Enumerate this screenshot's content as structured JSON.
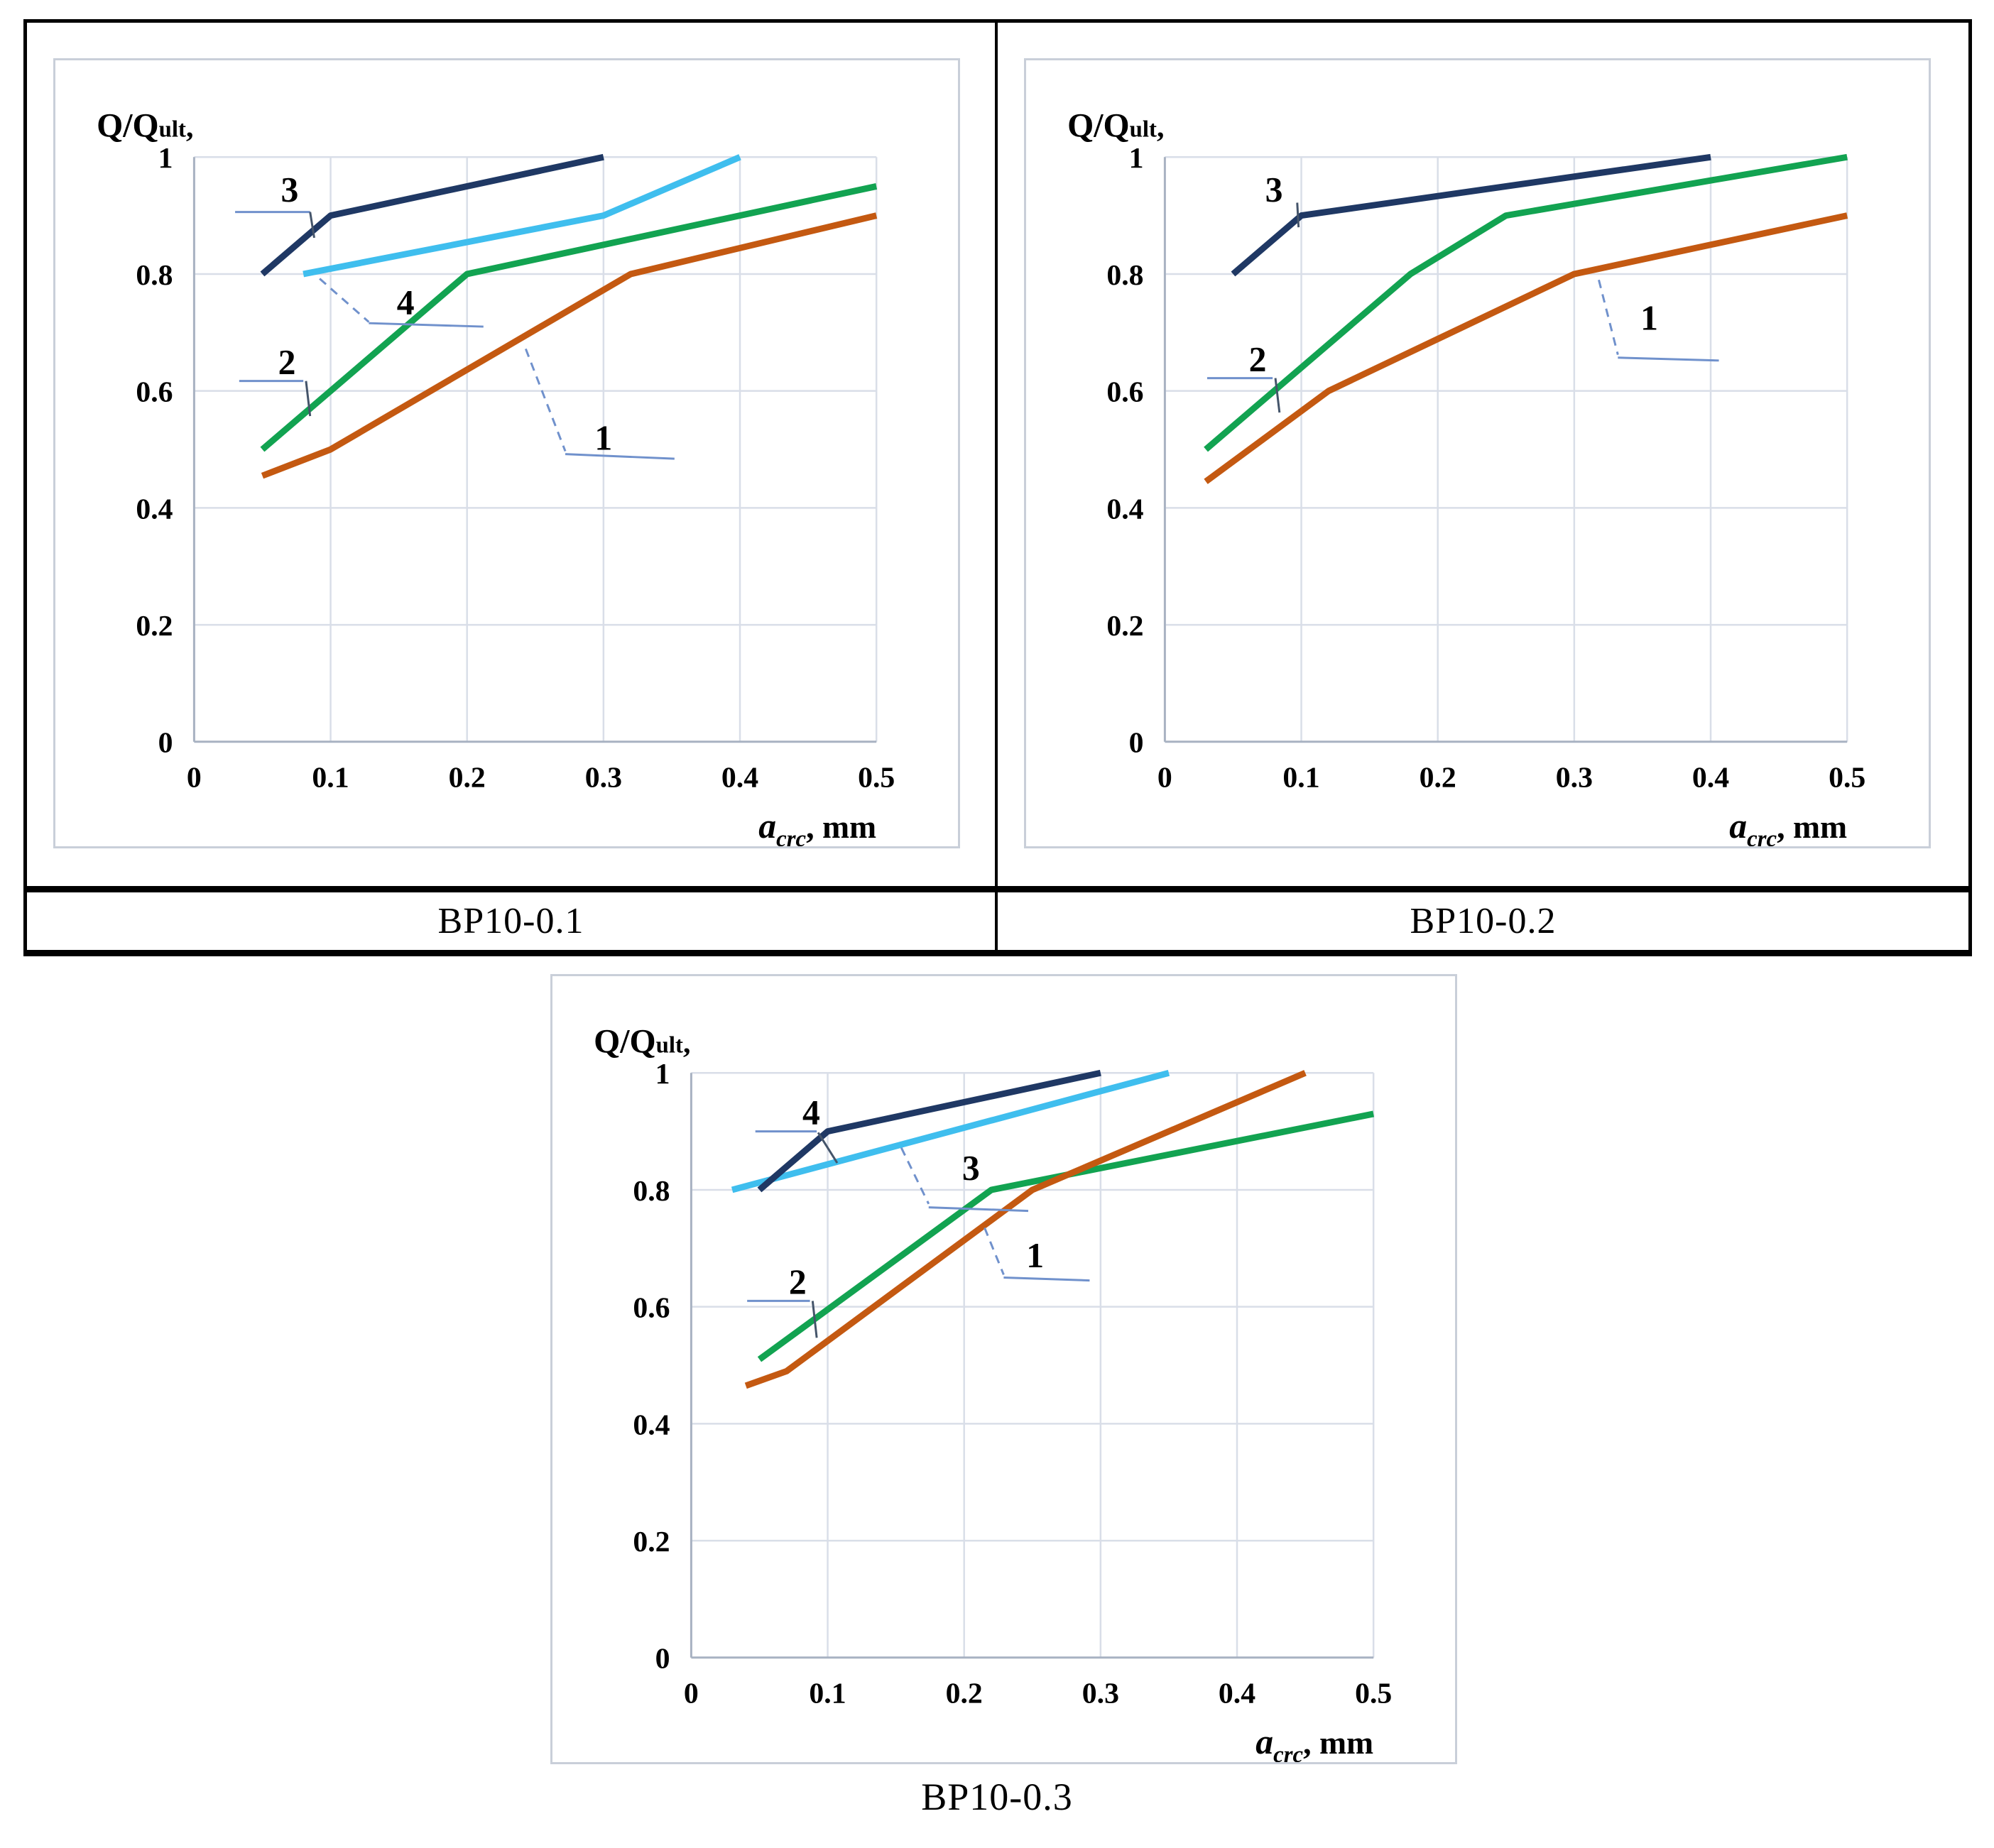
{
  "styles": {
    "navy": "#1F3864",
    "cyan": "#3FBEEE",
    "green": "#12A351",
    "orange": "#C45911",
    "grid": "#D9DEE8",
    "axis": "#A8B2C2",
    "leader_light": "#7091CC",
    "leader_dark": "#44546A",
    "frame_border": "#C9CFD9",
    "table_border": "#000000",
    "text": "#000000"
  },
  "chart_data": [
    {
      "id": "bp10-0-1",
      "title": "BP10-0.1",
      "type": "line",
      "xlabel": "a_crc, mm",
      "ylabel": "Q/Qult,",
      "xlabel_parts": [
        "a",
        "crc",
        ", mm"
      ],
      "ylabel_parts": [
        "Q/Q",
        "ult",
        ","
      ],
      "xlim": [
        0,
        0.5
      ],
      "ylim": [
        0,
        1
      ],
      "x_ticks": [
        0,
        0.1,
        0.2,
        0.3,
        0.4,
        0.5
      ],
      "y_ticks": [
        0,
        0.2,
        0.4,
        0.6,
        0.8,
        1
      ],
      "grid": true,
      "legend_position": "none",
      "series": [
        {
          "name": "2",
          "color_key": "green",
          "points": [
            [
              0.05,
              0.5
            ],
            [
              0.2,
              0.8
            ],
            [
              0.5,
              0.95
            ]
          ]
        },
        {
          "name": "1",
          "color_key": "orange",
          "points": [
            [
              0.05,
              0.455
            ],
            [
              0.1,
              0.5
            ],
            [
              0.32,
              0.8
            ],
            [
              0.5,
              0.9
            ]
          ]
        },
        {
          "name": "4",
          "color_key": "cyan",
          "points": [
            [
              0.08,
              0.8
            ],
            [
              0.3,
              0.9
            ],
            [
              0.4,
              1.0
            ]
          ]
        },
        {
          "name": "3",
          "color_key": "navy",
          "points": [
            [
              0.05,
              0.8
            ],
            [
              0.1,
              0.9
            ],
            [
              0.3,
              1.0
            ]
          ]
        }
      ],
      "annotations": [
        {
          "text": "3",
          "x": 0.07,
          "y": 0.945,
          "leaders": [
            {
              "points": [
                [
                  0.03,
                  0.906
                ],
                [
                  0.085,
                  0.906
                ]
              ],
              "color_key": "leader_light",
              "dashed": false
            },
            {
              "points": [
                [
                  0.085,
                  0.906
                ],
                [
                  0.088,
                  0.862
                ]
              ],
              "color_key": "leader_dark",
              "dashed": false
            }
          ]
        },
        {
          "text": "4",
          "x": 0.155,
          "y": 0.752,
          "leaders": [
            {
              "points": [
                [
                  0.092,
                  0.792
                ],
                [
                  0.128,
                  0.718
                ]
              ],
              "color_key": "leader_light",
              "dashed": true
            },
            {
              "points": [
                [
                  0.128,
                  0.716
                ],
                [
                  0.212,
                  0.71
                ]
              ],
              "color_key": "leader_light",
              "dashed": false
            }
          ]
        },
        {
          "text": "2",
          "x": 0.068,
          "y": 0.65,
          "leaders": [
            {
              "points": [
                [
                  0.033,
                  0.617
                ],
                [
                  0.08,
                  0.617
                ]
              ],
              "color_key": "leader_light",
              "dashed": false
            },
            {
              "points": [
                [
                  0.082,
                  0.617
                ],
                [
                  0.085,
                  0.557
                ]
              ],
              "color_key": "leader_dark",
              "dashed": false
            }
          ]
        },
        {
          "text": "1",
          "x": 0.3,
          "y": 0.52,
          "leaders": [
            {
              "points": [
                [
                  0.243,
                  0.672
                ],
                [
                  0.272,
                  0.497
                ]
              ],
              "color_key": "leader_light",
              "dashed": true
            },
            {
              "points": [
                [
                  0.272,
                  0.492
                ],
                [
                  0.352,
                  0.484
                ]
              ],
              "color_key": "leader_light",
              "dashed": false
            }
          ]
        }
      ]
    },
    {
      "id": "bp10-0-2",
      "title": "BP10-0.2",
      "type": "line",
      "xlabel": "a_crc, mm",
      "ylabel": "Q/Qult,",
      "xlabel_parts": [
        "a",
        "crc",
        ", mm"
      ],
      "ylabel_parts": [
        "Q/Q",
        "ult",
        ","
      ],
      "xlim": [
        0,
        0.5
      ],
      "ylim": [
        0,
        1
      ],
      "x_ticks": [
        0,
        0.1,
        0.2,
        0.3,
        0.4,
        0.5
      ],
      "y_ticks": [
        0,
        0.2,
        0.4,
        0.6,
        0.8,
        1
      ],
      "grid": true,
      "legend_position": "none",
      "series": [
        {
          "name": "2",
          "color_key": "green",
          "points": [
            [
              0.03,
              0.5
            ],
            [
              0.18,
              0.8
            ],
            [
              0.25,
              0.9
            ],
            [
              0.5,
              1.0
            ]
          ]
        },
        {
          "name": "1",
          "color_key": "orange",
          "points": [
            [
              0.03,
              0.445
            ],
            [
              0.12,
              0.6
            ],
            [
              0.3,
              0.8
            ],
            [
              0.5,
              0.9
            ]
          ]
        },
        {
          "name": "3",
          "color_key": "navy",
          "points": [
            [
              0.05,
              0.8
            ],
            [
              0.1,
              0.9
            ],
            [
              0.4,
              1.0
            ]
          ]
        }
      ],
      "annotations": [
        {
          "text": "3",
          "x": 0.08,
          "y": 0.945,
          "leaders": [
            {
              "points": [
                [
                  0.097,
                  0.922
                ],
                [
                  0.098,
                  0.88
                ]
              ],
              "color_key": "leader_dark",
              "dashed": false
            }
          ]
        },
        {
          "text": "2",
          "x": 0.068,
          "y": 0.655,
          "leaders": [
            {
              "points": [
                [
                  0.031,
                  0.622
                ],
                [
                  0.079,
                  0.622
                ]
              ],
              "color_key": "leader_light",
              "dashed": false
            },
            {
              "points": [
                [
                  0.081,
                  0.622
                ],
                [
                  0.084,
                  0.563
                ]
              ],
              "color_key": "leader_dark",
              "dashed": false
            }
          ]
        },
        {
          "text": "1",
          "x": 0.355,
          "y": 0.725,
          "leaders": [
            {
              "points": [
                [
                  0.318,
                  0.79
                ],
                [
                  0.332,
                  0.662
                ]
              ],
              "color_key": "leader_light",
              "dashed": true
            },
            {
              "points": [
                [
                  0.332,
                  0.657
                ],
                [
                  0.406,
                  0.652
                ]
              ],
              "color_key": "leader_light",
              "dashed": false
            }
          ]
        }
      ]
    },
    {
      "id": "bp10-0-3",
      "title": "BP10-0.3",
      "type": "line",
      "xlabel": "a_crc, mm",
      "ylabel": "Q/Qult,",
      "xlabel_parts": [
        "a",
        "crc",
        ", mm"
      ],
      "ylabel_parts": [
        "Q/Q",
        "ult",
        ","
      ],
      "xlim": [
        0,
        0.5
      ],
      "ylim": [
        0,
        1
      ],
      "x_ticks": [
        0,
        0.1,
        0.2,
        0.3,
        0.4,
        0.5
      ],
      "y_ticks": [
        0,
        0.2,
        0.4,
        0.6,
        0.8,
        1
      ],
      "grid": true,
      "legend_position": "none",
      "series": [
        {
          "name": "3",
          "color_key": "cyan",
          "points": [
            [
              0.03,
              0.8
            ],
            [
              0.35,
              1.0
            ]
          ]
        },
        {
          "name": "2",
          "color_key": "green",
          "points": [
            [
              0.05,
              0.51
            ],
            [
              0.22,
              0.8
            ],
            [
              0.5,
              0.93
            ]
          ]
        },
        {
          "name": "1",
          "color_key": "orange",
          "points": [
            [
              0.04,
              0.465
            ],
            [
              0.07,
              0.49
            ],
            [
              0.25,
              0.8
            ],
            [
              0.45,
              1.0
            ]
          ]
        },
        {
          "name": "4",
          "color_key": "navy",
          "points": [
            [
              0.05,
              0.8
            ],
            [
              0.1,
              0.9
            ],
            [
              0.3,
              1.0
            ]
          ]
        }
      ],
      "annotations": [
        {
          "text": "4",
          "x": 0.088,
          "y": 0.933,
          "leaders": [
            {
              "points": [
                [
                  0.047,
                  0.9
                ],
                [
                  0.092,
                  0.9
                ]
              ],
              "color_key": "leader_light",
              "dashed": false
            },
            {
              "points": [
                [
                  0.093,
                  0.898
                ],
                [
                  0.107,
                  0.846
                ]
              ],
              "color_key": "leader_dark",
              "dashed": false
            }
          ]
        },
        {
          "text": "3",
          "x": 0.205,
          "y": 0.838,
          "leaders": [
            {
              "points": [
                [
                  0.154,
                  0.872
                ],
                [
                  0.174,
                  0.776
                ]
              ],
              "color_key": "leader_light",
              "dashed": true
            },
            {
              "points": [
                [
                  0.174,
                  0.77
                ],
                [
                  0.247,
                  0.764
                ]
              ],
              "color_key": "leader_light",
              "dashed": false
            }
          ]
        },
        {
          "text": "2",
          "x": 0.078,
          "y": 0.643,
          "leaders": [
            {
              "points": [
                [
                  0.041,
                  0.61
                ],
                [
                  0.087,
                  0.61
                ]
              ],
              "color_key": "leader_light",
              "dashed": false
            },
            {
              "points": [
                [
                  0.089,
                  0.61
                ],
                [
                  0.092,
                  0.547
                ]
              ],
              "color_key": "leader_dark",
              "dashed": false
            }
          ]
        },
        {
          "text": "1",
          "x": 0.252,
          "y": 0.688,
          "leaders": [
            {
              "points": [
                [
                  0.215,
                  0.735
                ],
                [
                  0.229,
                  0.655
                ]
              ],
              "color_key": "leader_light",
              "dashed": true
            },
            {
              "points": [
                [
                  0.229,
                  0.65
                ],
                [
                  0.292,
                  0.645
                ]
              ],
              "color_key": "leader_light",
              "dashed": false
            }
          ]
        }
      ]
    }
  ]
}
